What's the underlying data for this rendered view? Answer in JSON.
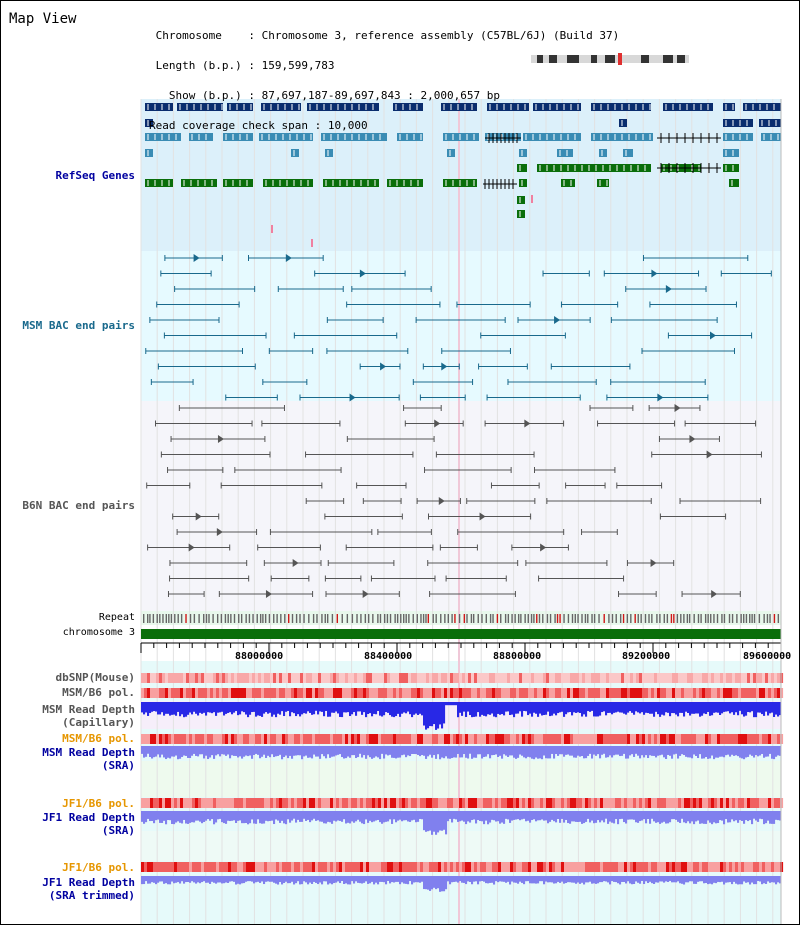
{
  "title": "Map View",
  "header": {
    "chromosome_key": "Chromosome",
    "chromosome_val": "Chromosome 3, reference assembly (C57BL/6J) (Build 37)",
    "length_key": "Length (b.p.)",
    "length_val": "159,599,783",
    "show_key": "Show (b.p.)",
    "show_val": "87,697,187-89,697,843 : 2,000,657 bp",
    "coverage_key": "Read coverage check span",
    "coverage_val": "10,000"
  },
  "tracks": {
    "refseq": "RefSeq Genes",
    "msm_bac": "MSM BAC end pairs",
    "b6n_bac": "B6N BAC end pairs",
    "repeat": "Repeat",
    "chromosome": "chromosome 3",
    "dbsnp": "dbSNP(Mouse)",
    "msm_b6_pol": "MSM/B6 pol.",
    "msm_depth_cap": "MSM Read Depth\n(Capillary)",
    "msm_b6_pol2": "MSM/B6 pol.",
    "msm_depth_sra": "MSM Read Depth\n(SRA)",
    "jf1_b6_pol": "JF1/B6 pol.",
    "jf1_depth_sra": "JF1 Read Depth\n(SRA)",
    "jf1_b6_pol2": "JF1/B6 pol.",
    "jf1_depth_trim": "JF1 Read Depth\n(SRA trimmed)"
  },
  "axis": {
    "ticks": [
      "88000000",
      "88400000",
      "88800000",
      "89200000",
      "89600000"
    ]
  },
  "colors": {
    "refseq_bg": "#dcf0fa",
    "refseq_dark": "#0a2d6e",
    "refseq_mid": "#3a8cb4",
    "refseq_green": "#0a6e0a",
    "msm_bac_bg": "#e6faff",
    "msm_bac_line": "#19698c",
    "b6n_bac_bg": "#f5f5fa",
    "b6n_bac_line": "#555555",
    "chrom_green": "#0a6e0a",
    "snp_pink": "#f8b4b4",
    "pol_red": "#e63c3c",
    "depth_blue": "#2828e6",
    "depth_lightblue": "#8080ee",
    "label_blue": "#0000a0",
    "label_orange": "#e69600",
    "label_teal": "#19698c"
  }
}
